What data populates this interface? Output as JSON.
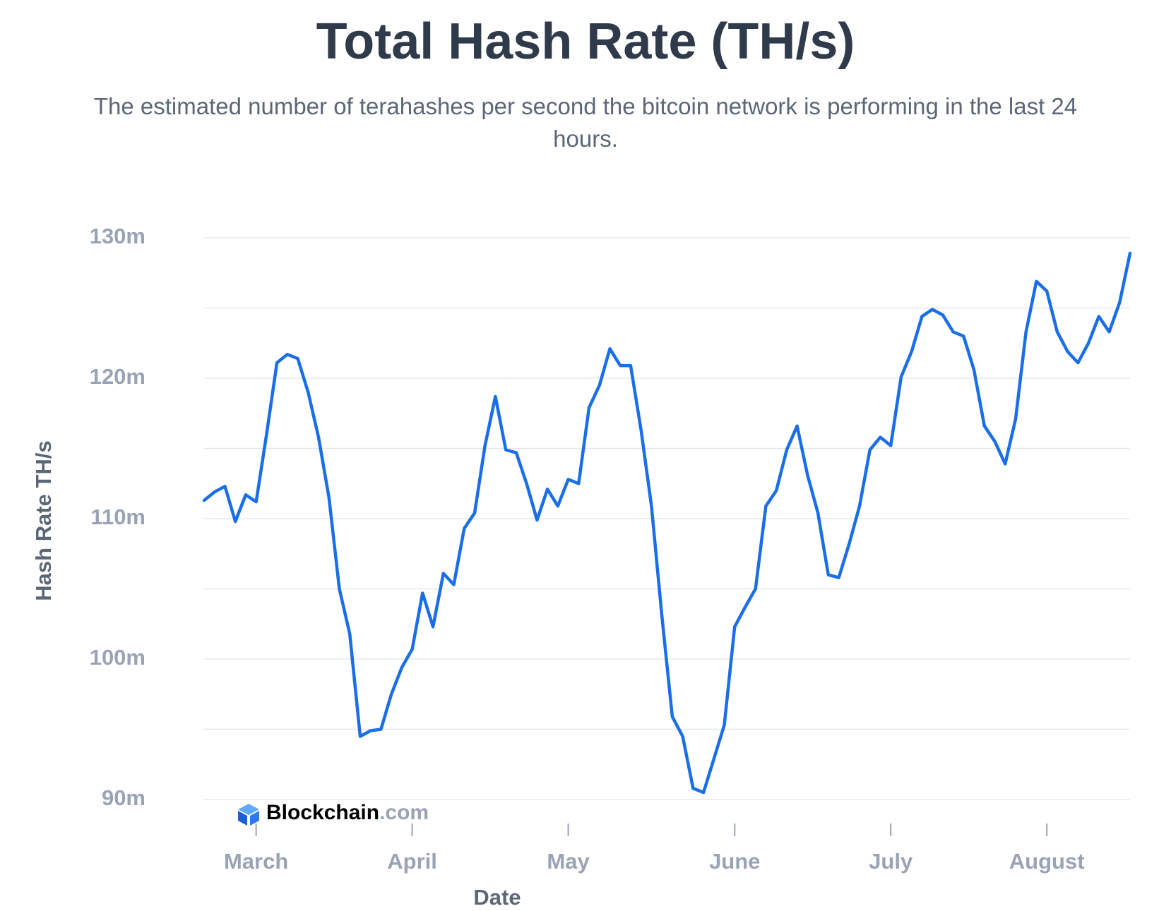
{
  "chart_data": {
    "type": "line",
    "title": "Total Hash Rate (TH/s)",
    "subtitle": "The estimated number of terahashes per second the bitcoin network is performing in the last 24 hours.",
    "x_label": "Date",
    "y_label": "Hash Rate TH/s",
    "watermark": {
      "brand": "Blockchain",
      "suffix": ".com"
    },
    "categories": [
      null,
      null,
      null,
      null,
      null,
      "March",
      null,
      null,
      null,
      null,
      null,
      null,
      null,
      null,
      null,
      null,
      null,
      null,
      null,
      null,
      "April",
      null,
      null,
      null,
      null,
      null,
      null,
      null,
      null,
      null,
      null,
      null,
      null,
      null,
      null,
      "May",
      null,
      null,
      null,
      null,
      null,
      null,
      null,
      null,
      null,
      null,
      null,
      null,
      null,
      null,
      null,
      "June",
      null,
      null,
      null,
      null,
      null,
      null,
      null,
      null,
      null,
      null,
      null,
      null,
      null,
      null,
      "July",
      null,
      null,
      null,
      null,
      null,
      null,
      null,
      null,
      null,
      null,
      null,
      null,
      null,
      null,
      "August",
      null,
      null,
      null,
      null,
      null,
      null,
      null,
      null
    ],
    "series": [
      {
        "name": "Hash Rate",
        "color": "#1a6ee8",
        "values": [
          111.3,
          111.9,
          112.3,
          109.8,
          111.7,
          111.2,
          116,
          121.1,
          121.7,
          121.4,
          119,
          115.8,
          111.5,
          105,
          101.8,
          94.5,
          94.9,
          95,
          97.5,
          99.4,
          100.7,
          104.7,
          102.3,
          106.1,
          105.3,
          109.3,
          110.4,
          115.2,
          118.7,
          114.9,
          114.7,
          112.5,
          109.9,
          112.1,
          110.9,
          112.8,
          112.5,
          117.9,
          119.5,
          122.1,
          120.9,
          120.9,
          116.3,
          110.9,
          103.1,
          95.9,
          94.5,
          90.8,
          90.5,
          92.9,
          95.3,
          102.3,
          103.7,
          105,
          110.9,
          112,
          114.9,
          116.6,
          113.1,
          110.4,
          106,
          105.8,
          108.2,
          110.9,
          114.9,
          115.8,
          115.2,
          120.1,
          121.9,
          124.4,
          124.9,
          124.5,
          123.3,
          123,
          120.6,
          116.6,
          115.5,
          113.9,
          117.1,
          123.3,
          126.9,
          126.2,
          123.3,
          121.9,
          121.1,
          122.5,
          124.4,
          123.3,
          125.4,
          128.9
        ]
      }
    ],
    "ylim": [
      90,
      130
    ],
    "yticks": [
      {
        "value": 90,
        "label": "90m"
      },
      {
        "value": 100,
        "label": "100m"
      },
      {
        "value": 110,
        "label": "110m"
      },
      {
        "value": 120,
        "label": "120m"
      },
      {
        "value": 130,
        "label": "130m"
      }
    ],
    "minor_yticks": [
      95,
      105,
      115,
      125
    ],
    "grid": true
  }
}
